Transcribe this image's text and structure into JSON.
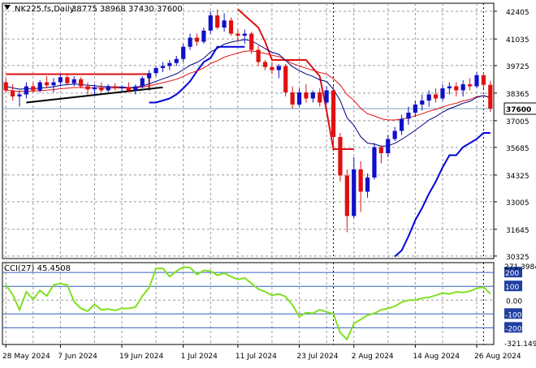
{
  "colors": {
    "background": "#ffffff",
    "grid": "#9a9a9a",
    "frame": "#000000",
    "bull_candle": "#1010c8",
    "bear_candle": "#e01010",
    "ema_fast": "#000080",
    "ema_slow": "#e01010",
    "stop_line": "#e01010",
    "trend_line": "#000000",
    "lower_band": "#0000e0",
    "cci_line": "#80e020",
    "cci_level": "#3060c0",
    "price_line": "#7aa0b8",
    "label_bg": "#ffffff",
    "level_label_bg": "#2040a0"
  },
  "chart_data": [
    {
      "type": "candlestick",
      "title": "NK225.fs,Daily",
      "ohlc_text": "38775 38968 37430 37600",
      "symbol_icon": "triangle-down-icon",
      "current_price": 37600,
      "current_price_label": "37600",
      "ylim": [
        30200,
        42800
      ],
      "yticks": [
        42405,
        41035,
        39725,
        38365,
        37005,
        35685,
        34325,
        33005,
        31645,
        30325
      ],
      "ytick_labels": [
        "42405",
        "41035",
        "39725",
        "38365",
        "37005",
        "35685",
        "34325",
        "33005",
        "31645",
        "30325"
      ],
      "xtick_labels": [
        "28 May 2024",
        "7 Jun 2024",
        "19 Jun 2024",
        "1 Jul 2024",
        "11 Jul 2024",
        "23 Jul 2024",
        "2 Aug 2024",
        "14 Aug 2024",
        "26 Aug 2024"
      ],
      "xtick_index": [
        0,
        8,
        17,
        26,
        34,
        43,
        51,
        60,
        69
      ],
      "vgrid_index": [
        4,
        13,
        22,
        30,
        39,
        47,
        56,
        64
      ],
      "dotted_vlines": [
        48,
        70
      ],
      "candles": [
        [
          38900,
          39100,
          38400,
          38500
        ],
        [
          38500,
          38800,
          38000,
          38200
        ],
        [
          38200,
          38500,
          37700,
          38300
        ],
        [
          38300,
          38900,
          38100,
          38700
        ],
        [
          38700,
          38900,
          38400,
          38500
        ],
        [
          38500,
          39000,
          38400,
          38900
        ],
        [
          38900,
          39200,
          38600,
          38750
        ],
        [
          38750,
          39100,
          38400,
          38900
        ],
        [
          38900,
          39300,
          38700,
          39150
        ],
        [
          39150,
          39300,
          38800,
          38850
        ],
        [
          38850,
          39200,
          38700,
          39050
        ],
        [
          39050,
          39150,
          38600,
          38700
        ],
        [
          38700,
          38900,
          38300,
          38550
        ],
        [
          38550,
          38800,
          38300,
          38650
        ],
        [
          38650,
          38900,
          38400,
          38500
        ],
        [
          38500,
          38800,
          38400,
          38700
        ],
        [
          38700,
          38850,
          38500,
          38600
        ],
        [
          38600,
          38750,
          38400,
          38650
        ],
        [
          38650,
          38900,
          38400,
          38500
        ],
        [
          38500,
          38800,
          38300,
          38700
        ],
        [
          38700,
          39200,
          38600,
          39100
        ],
        [
          39100,
          39500,
          38900,
          39350
        ],
        [
          39350,
          39700,
          39200,
          39600
        ],
        [
          39600,
          39900,
          39400,
          39700
        ],
        [
          39700,
          40000,
          39500,
          39850
        ],
        [
          39850,
          40200,
          39700,
          40050
        ],
        [
          40050,
          40800,
          39900,
          40650
        ],
        [
          40650,
          41300,
          40500,
          41100
        ],
        [
          41100,
          41300,
          40700,
          40900
        ],
        [
          40900,
          41600,
          40800,
          41450
        ],
        [
          41450,
          42400,
          41300,
          42200
        ],
        [
          42200,
          42500,
          41500,
          41600
        ],
        [
          41600,
          42300,
          41400,
          41950
        ],
        [
          41950,
          42100,
          41200,
          41300
        ],
        [
          41300,
          41500,
          40900,
          41200
        ],
        [
          41200,
          41500,
          40800,
          41300
        ],
        [
          41300,
          41400,
          40300,
          40500
        ],
        [
          40500,
          40700,
          39700,
          39900
        ],
        [
          39900,
          40000,
          39500,
          39650
        ],
        [
          39650,
          39900,
          39300,
          39500
        ],
        [
          39500,
          39800,
          39100,
          39700
        ],
        [
          39700,
          39800,
          38200,
          38400
        ],
        [
          38400,
          38700,
          37600,
          37800
        ],
        [
          37800,
          38600,
          37700,
          38400
        ],
        [
          38400,
          38800,
          37900,
          38100
        ],
        [
          38100,
          38500,
          37900,
          38400
        ],
        [
          38400,
          38600,
          37700,
          37900
        ],
        [
          37900,
          38700,
          37800,
          38500
        ],
        [
          38500,
          38700,
          35800,
          36200
        ],
        [
          36200,
          36400,
          34000,
          34300
        ],
        [
          34300,
          34600,
          31500,
          32300
        ],
        [
          32300,
          35200,
          32200,
          34600
        ],
        [
          34600,
          35000,
          32500,
          33500
        ],
        [
          33500,
          34400,
          33200,
          34200
        ],
        [
          34200,
          35900,
          34100,
          35700
        ],
        [
          35700,
          35800,
          34900,
          35400
        ],
        [
          35400,
          36300,
          35200,
          36100
        ],
        [
          36100,
          36700,
          36000,
          36500
        ],
        [
          36500,
          37300,
          36300,
          37100
        ],
        [
          37100,
          37700,
          36800,
          37400
        ],
        [
          37400,
          38000,
          37200,
          37800
        ],
        [
          37800,
          38300,
          37500,
          38000
        ],
        [
          38000,
          38500,
          37700,
          38300
        ],
        [
          38300,
          38600,
          37900,
          38100
        ],
        [
          38100,
          38800,
          38000,
          38600
        ],
        [
          38600,
          38900,
          38300,
          38700
        ],
        [
          38700,
          38900,
          38200,
          38500
        ],
        [
          38500,
          39000,
          38200,
          38800
        ],
        [
          38800,
          39100,
          38500,
          38700
        ],
        [
          38700,
          39400,
          38600,
          39250
        ],
        [
          39250,
          39400,
          38600,
          38775
        ],
        [
          38775,
          38968,
          37430,
          37600
        ]
      ],
      "ema_fast": [
        38700,
        38620,
        38560,
        38580,
        38570,
        38620,
        38640,
        38680,
        38750,
        38780,
        38810,
        38790,
        38750,
        38730,
        38690,
        38690,
        38670,
        38670,
        38640,
        38650,
        38720,
        38820,
        38950,
        39070,
        39190,
        39320,
        39520,
        39740,
        39880,
        40080,
        40400,
        40570,
        40780,
        40880,
        40950,
        41010,
        40950,
        40760,
        40560,
        40380,
        40280,
        39980,
        39670,
        39480,
        39310,
        39190,
        39020,
        38940,
        38560,
        38000,
        37150,
        36780,
        36220,
        35900,
        35850,
        35740,
        35770,
        35890,
        36080,
        36300,
        36540,
        36780,
        37040,
        37210,
        37420,
        37600,
        37720,
        37870,
        37960,
        38150,
        38250,
        38150
      ],
      "ema_slow": [
        38500,
        38480,
        38450,
        38460,
        38460,
        38490,
        38510,
        38540,
        38580,
        38610,
        38640,
        38640,
        38630,
        38630,
        38620,
        38620,
        38620,
        38620,
        38610,
        38620,
        38660,
        38720,
        38800,
        38880,
        38960,
        39050,
        39190,
        39350,
        39460,
        39610,
        39820,
        39970,
        40140,
        40250,
        40340,
        40430,
        40450,
        40400,
        40320,
        40230,
        40170,
        40010,
        39830,
        39710,
        39590,
        39500,
        39380,
        39310,
        39080,
        38760,
        38290,
        38010,
        37620,
        37350,
        37240,
        37100,
        37040,
        37040,
        37080,
        37150,
        37250,
        37350,
        37470,
        37560,
        37680,
        37790,
        37870,
        37980,
        38050,
        38190,
        38240,
        38130
      ],
      "lower_band": [
        null,
        null,
        null,
        null,
        null,
        null,
        null,
        null,
        null,
        null,
        null,
        null,
        null,
        null,
        null,
        null,
        null,
        null,
        null,
        null,
        null,
        37900,
        37900,
        38000,
        38100,
        38300,
        38600,
        38950,
        39450,
        39900,
        40100,
        40650,
        40650,
        40650,
        40650,
        40650,
        null,
        null,
        null,
        null,
        null,
        null,
        null,
        null,
        null,
        null,
        null,
        null,
        null,
        null,
        null,
        null,
        null,
        null,
        null,
        null,
        null,
        30300,
        30600,
        31300,
        32100,
        32700,
        33400,
        34000,
        34700,
        35300,
        35300,
        35700,
        35900,
        36100,
        36400,
        36400
      ],
      "stop_line": [
        null,
        null,
        null,
        null,
        null,
        null,
        null,
        null,
        null,
        null,
        null,
        null,
        null,
        null,
        null,
        null,
        null,
        null,
        null,
        null,
        null,
        null,
        null,
        null,
        null,
        null,
        null,
        null,
        null,
        null,
        null,
        null,
        null,
        null,
        42500,
        42200,
        41900,
        41600,
        40900,
        40000,
        40000,
        40000,
        40000,
        40000,
        40000,
        39600,
        39200,
        37500,
        35600,
        35600,
        35600,
        35600
      ],
      "resistance_line": {
        "x": [
          0,
          21
        ],
        "y": [
          39300,
          39300
        ],
        "end_y_index": 21,
        "end_y": 38500
      },
      "trend_line": {
        "x": [
          3,
          23
        ],
        "y": [
          37900,
          38650
        ]
      }
    },
    {
      "type": "line",
      "title": "CCI(27) 45.4508",
      "ylim": [
        -321.149,
        271.3984
      ],
      "yticks_labels": [
        "271.3984",
        "-321.149"
      ],
      "levels": [
        200,
        100,
        0,
        -100,
        -200
      ],
      "level_labels": [
        "200",
        "100",
        "0.00",
        "-100",
        "-200"
      ],
      "values": [
        110,
        40,
        -70,
        60,
        5,
        70,
        30,
        110,
        120,
        110,
        -10,
        -60,
        -80,
        -30,
        -70,
        -65,
        -75,
        -60,
        -60,
        -50,
        30,
        90,
        230,
        230,
        170,
        210,
        240,
        235,
        185,
        215,
        210,
        180,
        195,
        170,
        150,
        160,
        120,
        80,
        60,
        35,
        45,
        25,
        -35,
        -120,
        -90,
        -95,
        -70,
        -85,
        -100,
        -235,
        -285,
        -170,
        -140,
        -110,
        -95,
        -70,
        -60,
        -45,
        -15,
        0,
        0,
        15,
        20,
        35,
        50,
        45,
        60,
        55,
        65,
        85,
        95,
        45
      ]
    }
  ]
}
